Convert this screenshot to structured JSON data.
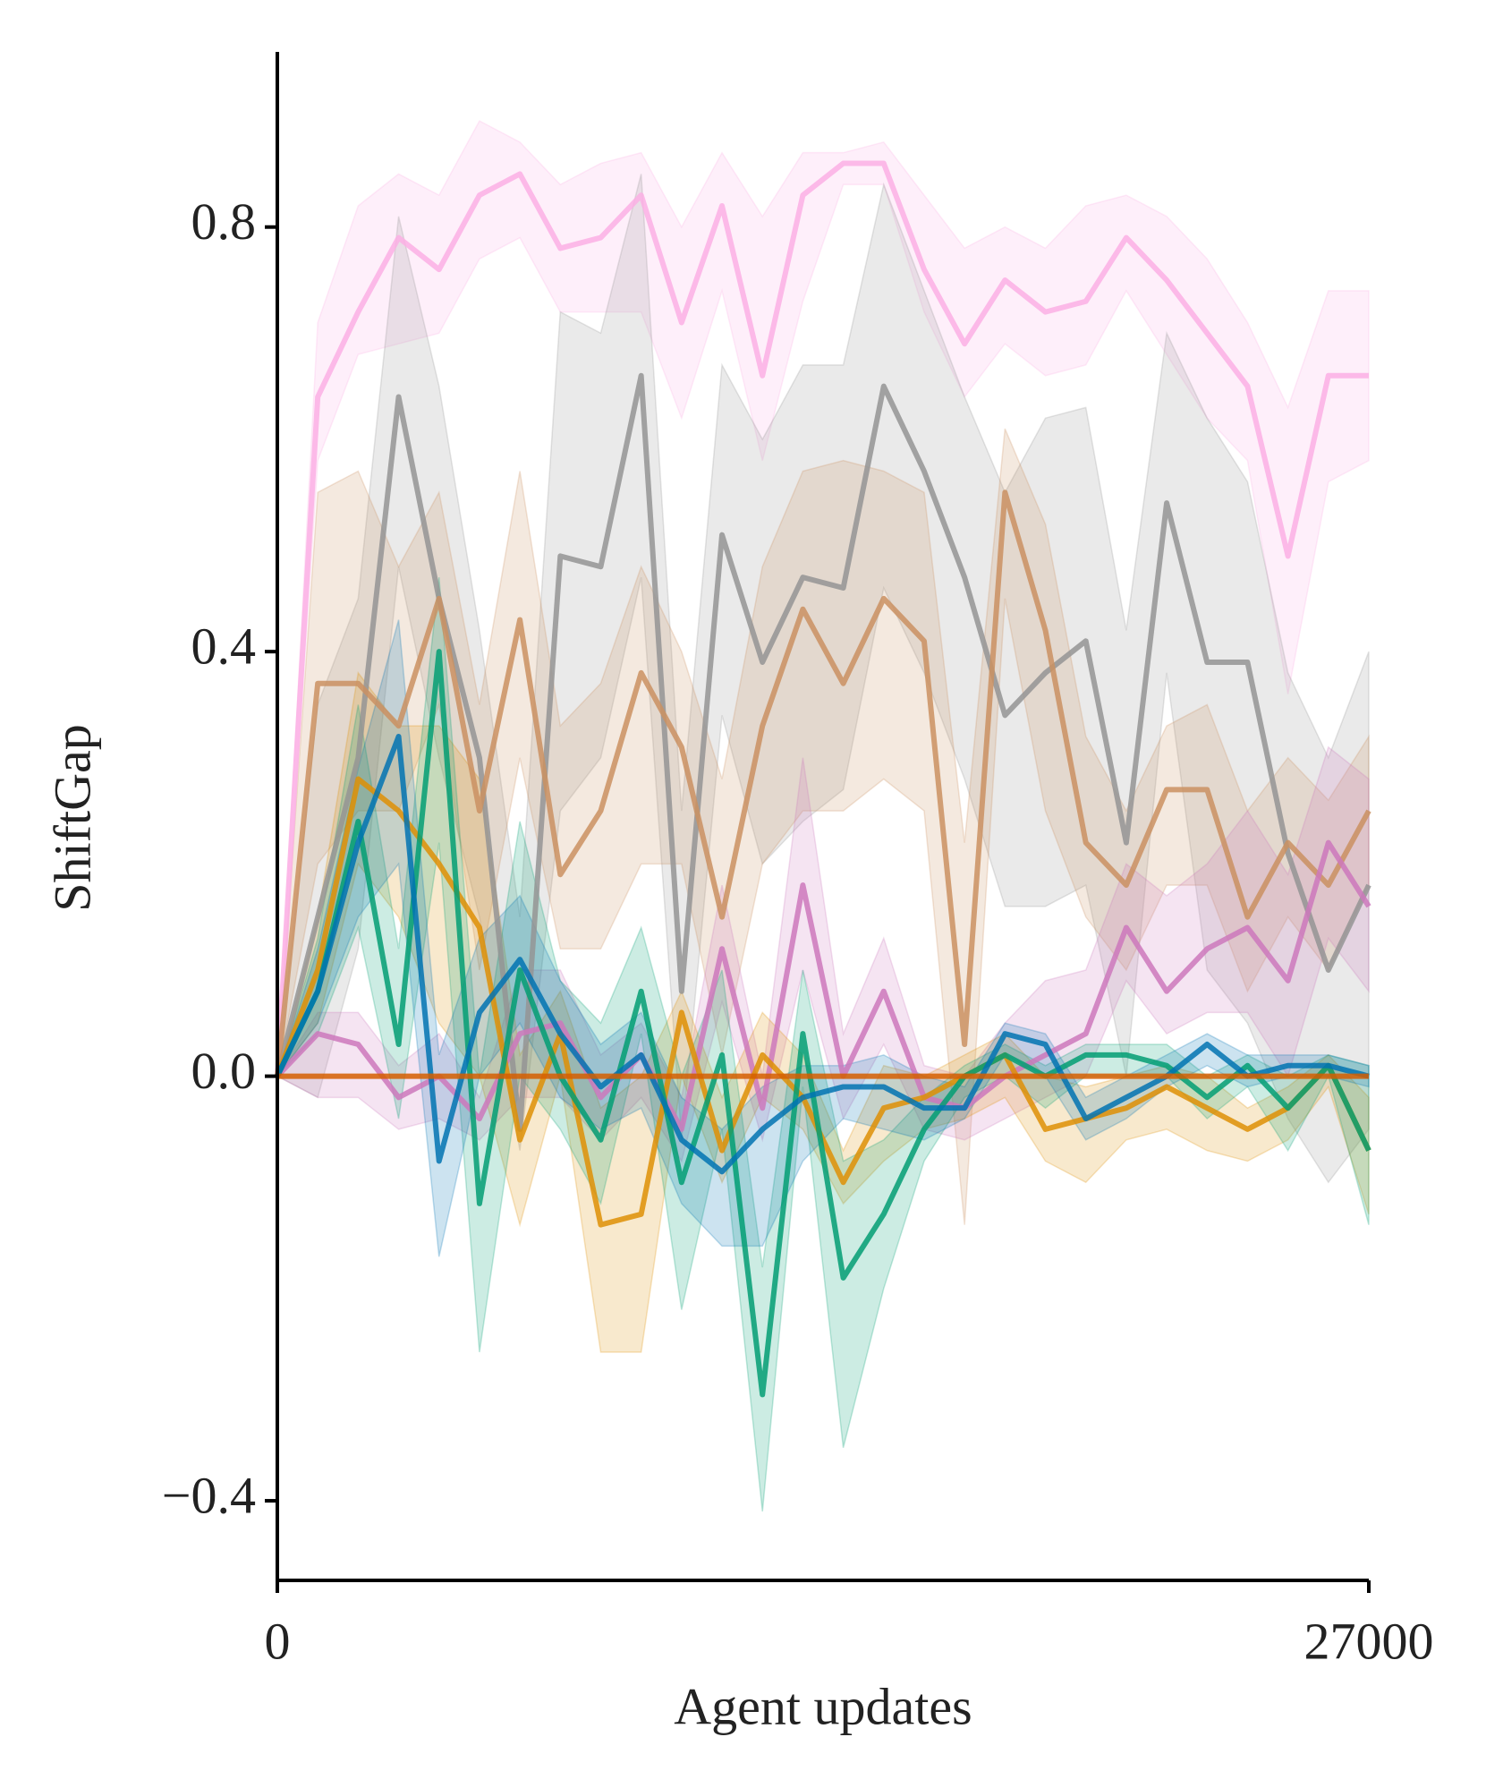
{
  "chart_data": {
    "type": "line",
    "xlabel": "Agent updates",
    "ylabel": "ShiftGap",
    "x": [
      0,
      1000,
      2000,
      3000,
      4000,
      5000,
      6000,
      7000,
      8000,
      9000,
      10000,
      11000,
      12000,
      13000,
      14000,
      15000,
      16000,
      17000,
      18000,
      19000,
      20000,
      21000,
      22000,
      23000,
      24000,
      25000,
      26000,
      27000
    ],
    "xlim": [
      0,
      27000
    ],
    "xticks": [
      0,
      27000
    ],
    "ylim": [
      -0.475,
      0.965
    ],
    "yticks": [
      {
        "value": -0.4,
        "label": "−0.4"
      },
      {
        "value": 0,
        "label": "0.0"
      },
      0.4,
      0.8
    ],
    "series": [
      {
        "color": "#fbafe4",
        "values": [
          0,
          0.64,
          0.72,
          0.79,
          0.76,
          0.83,
          0.85,
          0.78,
          0.79,
          0.83,
          0.71,
          0.82,
          0.66,
          0.83,
          0.86,
          0.86,
          0.76,
          0.69,
          0.75,
          0.72,
          0.73,
          0.79,
          0.75,
          0.7,
          0.65,
          0.49,
          0.66,
          0.66
        ],
        "lower": [
          0,
          0.58,
          0.68,
          0.69,
          0.7,
          0.77,
          0.79,
          0.72,
          0.72,
          0.72,
          0.62,
          0.74,
          0.58,
          0.73,
          0.84,
          0.84,
          0.72,
          0.64,
          0.69,
          0.66,
          0.67,
          0.74,
          0.68,
          0.62,
          0.58,
          0.36,
          0.56,
          0.58
        ],
        "upper": [
          0,
          0.71,
          0.82,
          0.85,
          0.83,
          0.9,
          0.88,
          0.84,
          0.86,
          0.87,
          0.8,
          0.87,
          0.81,
          0.87,
          0.87,
          0.88,
          0.83,
          0.78,
          0.8,
          0.78,
          0.82,
          0.83,
          0.81,
          0.77,
          0.71,
          0.63,
          0.74,
          0.74
        ]
      },
      {
        "color": "#949494",
        "values": [
          0,
          0.15,
          0.3,
          0.64,
          0.45,
          0.3,
          -0.05,
          0.49,
          0.48,
          0.66,
          0.08,
          0.51,
          0.39,
          0.47,
          0.46,
          0.65,
          0.57,
          0.47,
          0.34,
          0.38,
          0.41,
          0.22,
          0.54,
          0.39,
          0.39,
          0.21,
          0.1,
          0.18
        ],
        "lower": [
          0,
          -0.02,
          0.12,
          0.48,
          0.3,
          0.15,
          -0.07,
          0.25,
          0.3,
          0.47,
          -0.06,
          0.34,
          0.2,
          0.24,
          0.27,
          0.46,
          0.38,
          0.28,
          0.16,
          0.16,
          0.18,
          0,
          0.38,
          0.1,
          0.05,
          -0.04,
          -0.1,
          -0.05
        ],
        "upper": [
          0,
          0.35,
          0.45,
          0.81,
          0.65,
          0.42,
          0.15,
          0.72,
          0.7,
          0.85,
          0.25,
          0.67,
          0.6,
          0.67,
          0.67,
          0.84,
          0.74,
          0.64,
          0.55,
          0.62,
          0.63,
          0.42,
          0.7,
          0.62,
          0.56,
          0.38,
          0.3,
          0.4
        ]
      },
      {
        "color": "#ca9161",
        "values": [
          0,
          0.37,
          0.37,
          0.33,
          0.45,
          0.25,
          0.43,
          0.19,
          0.25,
          0.38,
          0.31,
          0.15,
          0.33,
          0.44,
          0.37,
          0.45,
          0.41,
          0.03,
          0.55,
          0.42,
          0.22,
          0.18,
          0.27,
          0.27,
          0.15,
          0.22,
          0.18,
          0.25
        ],
        "lower": [
          0,
          0.2,
          0.25,
          0.25,
          0.35,
          0.1,
          0.3,
          0.12,
          0.12,
          0.2,
          0.2,
          0.02,
          0.2,
          0.25,
          0.25,
          0.28,
          0.25,
          -0.14,
          0.45,
          0.25,
          0.15,
          0.1,
          0.18,
          0.18,
          0.08,
          0.15,
          0.1,
          0.18
        ],
        "upper": [
          0,
          0.55,
          0.57,
          0.48,
          0.55,
          0.35,
          0.57,
          0.33,
          0.37,
          0.48,
          0.4,
          0.28,
          0.48,
          0.57,
          0.58,
          0.57,
          0.55,
          0.22,
          0.61,
          0.52,
          0.32,
          0.25,
          0.33,
          0.35,
          0.25,
          0.3,
          0.26,
          0.32
        ]
      },
      {
        "color": "#cc78bc",
        "values": [
          0,
          0.04,
          0.03,
          -0.02,
          0,
          -0.04,
          0.04,
          0.05,
          -0.02,
          0.02,
          -0.05,
          0.12,
          -0.03,
          0.18,
          0,
          0.08,
          -0.02,
          -0.03,
          0,
          0.02,
          0.04,
          0.14,
          0.08,
          0.12,
          0.14,
          0.09,
          0.22,
          0.16
        ],
        "lower": [
          0,
          -0.02,
          -0.02,
          -0.05,
          -0.04,
          -0.06,
          -0.02,
          -0.02,
          -0.06,
          -0.02,
          -0.08,
          0.07,
          -0.06,
          0.1,
          -0.04,
          0.03,
          -0.05,
          -0.06,
          -0.04,
          -0.02,
          0,
          0.09,
          0.04,
          0.06,
          0.06,
          0,
          0.13,
          0.08
        ],
        "upper": [
          0,
          0.06,
          0.06,
          0.01,
          0.04,
          -0.02,
          0.1,
          0.1,
          0.02,
          0.05,
          -0.02,
          0.18,
          0,
          0.3,
          0.04,
          0.13,
          0.01,
          0,
          0.05,
          0.09,
          0.1,
          0.2,
          0.17,
          0.2,
          0.25,
          0.19,
          0.31,
          0.28
        ]
      },
      {
        "color": "#de8f05",
        "values": [
          0,
          0.1,
          0.28,
          0.25,
          0.2,
          0.14,
          -0.06,
          0.04,
          -0.14,
          -0.13,
          0.06,
          -0.07,
          0.02,
          -0.02,
          -0.1,
          -0.03,
          -0.02,
          0,
          0.02,
          -0.05,
          -0.04,
          -0.03,
          -0.01,
          -0.03,
          -0.05,
          -0.03,
          0.01,
          -0.07
        ],
        "lower": [
          0,
          0.05,
          0.2,
          0.15,
          0.05,
          0,
          -0.14,
          0,
          -0.26,
          -0.26,
          0,
          -0.1,
          -0.02,
          -0.05,
          -0.12,
          -0.08,
          -0.05,
          -0.04,
          -0.02,
          -0.08,
          -0.1,
          -0.06,
          -0.05,
          -0.07,
          -0.08,
          -0.06,
          -0.01,
          -0.13
        ],
        "upper": [
          0,
          0.15,
          0.38,
          0.33,
          0.33,
          0.28,
          0.02,
          0.08,
          -0.03,
          0,
          0.08,
          -0.02,
          0.06,
          0.02,
          -0.07,
          0.01,
          0,
          0.02,
          0.04,
          0,
          -0.01,
          0,
          0.01,
          0,
          -0.03,
          -0.01,
          0.02,
          -0.02
        ]
      },
      {
        "color": "#029e73",
        "values": [
          0,
          0.08,
          0.24,
          0.03,
          0.4,
          -0.12,
          0.1,
          0,
          -0.06,
          0.08,
          -0.1,
          0.02,
          -0.3,
          0.04,
          -0.19,
          -0.13,
          -0.05,
          0,
          0.02,
          0,
          0.02,
          0.02,
          0.01,
          -0.02,
          0.01,
          -0.03,
          0.01,
          -0.07
        ],
        "lower": [
          0,
          0.04,
          0.14,
          -0.04,
          0.22,
          -0.26,
          0,
          -0.05,
          -0.12,
          0.04,
          -0.22,
          -0.05,
          -0.41,
          -0.01,
          -0.35,
          -0.2,
          -0.08,
          -0.02,
          0,
          -0.03,
          0,
          0,
          0,
          -0.04,
          -0.01,
          -0.07,
          0,
          -0.14
        ],
        "upper": [
          0,
          0.13,
          0.35,
          0.12,
          0.47,
          0,
          0.24,
          0.09,
          0.05,
          0.14,
          0,
          0.1,
          -0.18,
          0.1,
          -0.08,
          -0.06,
          -0.02,
          0.01,
          0.03,
          0.01,
          0.03,
          0.03,
          0.03,
          0,
          0.02,
          0,
          0.02,
          0.01
        ]
      },
      {
        "color": "#0173b2",
        "values": [
          0,
          0.08,
          0.22,
          0.32,
          -0.08,
          0.06,
          0.11,
          0.04,
          -0.01,
          0.02,
          -0.06,
          -0.09,
          -0.05,
          -0.02,
          -0.01,
          -0.01,
          -0.03,
          -0.03,
          0.04,
          0.03,
          -0.04,
          -0.02,
          0,
          0.03,
          0,
          0.01,
          0.01,
          0
        ],
        "lower": [
          0,
          0.05,
          0.15,
          0.2,
          -0.17,
          0,
          0.05,
          -0.02,
          -0.05,
          -0.03,
          -0.12,
          -0.16,
          -0.16,
          -0.08,
          -0.04,
          -0.05,
          -0.06,
          -0.04,
          0.02,
          0,
          -0.06,
          -0.04,
          -0.01,
          0.01,
          -0.01,
          0,
          0,
          -0.01
        ],
        "upper": [
          0,
          0.12,
          0.29,
          0.43,
          0.02,
          0.13,
          0.17,
          0.09,
          0.03,
          0.06,
          -0.02,
          -0.05,
          -0.01,
          0.01,
          0.01,
          0.02,
          0,
          -0.01,
          0.05,
          0.04,
          -0.02,
          0,
          0.02,
          0.04,
          0.02,
          0.02,
          0.02,
          0.01
        ]
      },
      {
        "color": "#d55e00",
        "values": [
          0,
          0,
          0,
          0,
          0,
          0,
          0,
          0,
          0,
          0,
          0,
          0,
          0,
          0,
          0,
          0,
          0,
          0,
          0,
          0,
          0,
          0,
          0,
          0,
          0,
          0,
          0,
          0
        ]
      }
    ]
  }
}
